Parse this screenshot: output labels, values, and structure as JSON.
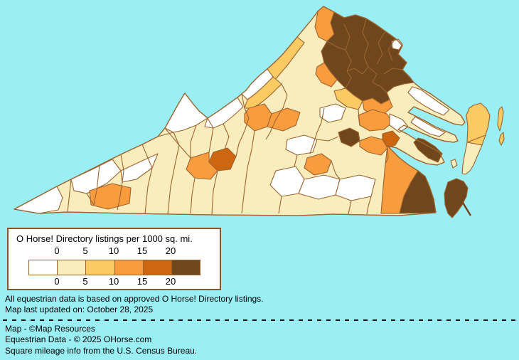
{
  "map": {
    "state": "Virginia",
    "description": "County choropleth of O Horse! Directory listings per 1000 sq. mi.",
    "water_color": "#9AEFF4",
    "county_border_color": "#9C6430",
    "legend_box_border_color": "#86562A",
    "legend_box_fill": "#FFFFFF"
  },
  "legend": {
    "title": "O Horse! Directory listings per 1000 sq. mi.",
    "ticks": [
      "0",
      "5",
      "10",
      "15",
      "20"
    ],
    "colors": [
      "#FFFFFF",
      "#F9EDBD",
      "#FBCB63",
      "#F99C3D",
      "#CC6611",
      "#70461C"
    ]
  },
  "notes": {
    "line1": "All equestrian data is based on approved O Horse! Directory listings.",
    "line2": "Map last updated on: October 28, 2025"
  },
  "footer": {
    "line1": "Map - ©Map Resources",
    "line2": "Equestrian Data - © 2025 OHorse.com",
    "line3": "Square mileage info from the U.S. Census Bureau."
  }
}
